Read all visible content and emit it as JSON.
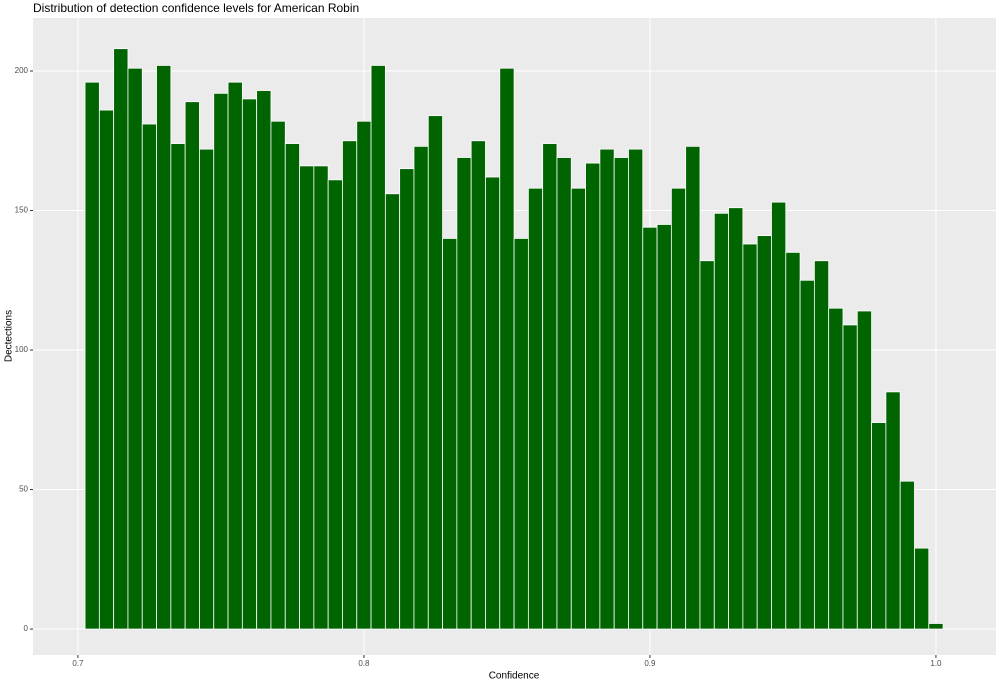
{
  "chart_data": {
    "type": "histogram",
    "title": "Distribution of detection confidence levels for American Robin",
    "x_label": "Confidence",
    "y_label": "Dectections",
    "color": "#006400",
    "bins": [
      0.7025,
      0.7075,
      0.7125,
      0.7175,
      0.7225,
      0.7275,
      0.7325,
      0.7375,
      0.7425,
      0.7475,
      0.7525,
      0.7575,
      0.7625,
      0.7675,
      0.7725,
      0.7775,
      0.7825,
      0.7875,
      0.7925,
      0.7975,
      0.8025,
      0.8075,
      0.8125,
      0.8175,
      0.8225,
      0.8275,
      0.8325,
      0.8375,
      0.8425,
      0.8475,
      0.8525,
      0.8575,
      0.8625,
      0.8675,
      0.8725,
      0.8775,
      0.8825,
      0.8875,
      0.8925,
      0.8975,
      0.9025,
      0.9075,
      0.9125,
      0.9175,
      0.9225,
      0.9275,
      0.9325,
      0.9375,
      0.9425,
      0.9475,
      0.9525,
      0.9575,
      0.9625,
      0.9675,
      0.9725,
      0.9775,
      0.9825,
      0.9875,
      0.9925,
      0.9975,
      1.0025
    ],
    "values": [
      196,
      186,
      208,
      201,
      181,
      202,
      174,
      189,
      172,
      192,
      196,
      190,
      193,
      182,
      174,
      166,
      166,
      161,
      175,
      182,
      202,
      156,
      165,
      173,
      184,
      140,
      169,
      175,
      162,
      201,
      140,
      158,
      174,
      169,
      158,
      167,
      172,
      169,
      172,
      144,
      145,
      158,
      173,
      132,
      149,
      151,
      138,
      141,
      153,
      135,
      125,
      132,
      115,
      109,
      114,
      74,
      85,
      53,
      29,
      2
    ],
    "xlim": [
      0.6843,
      1.021
    ],
    "ylim": [
      -9.3,
      219
    ],
    "xticks": [
      0.7,
      0.8,
      0.9,
      {
        "value": 1.0,
        "label": "1.0"
      }
    ],
    "yticks": [
      0,
      50,
      100,
      150,
      200
    ],
    "grid": true
  }
}
